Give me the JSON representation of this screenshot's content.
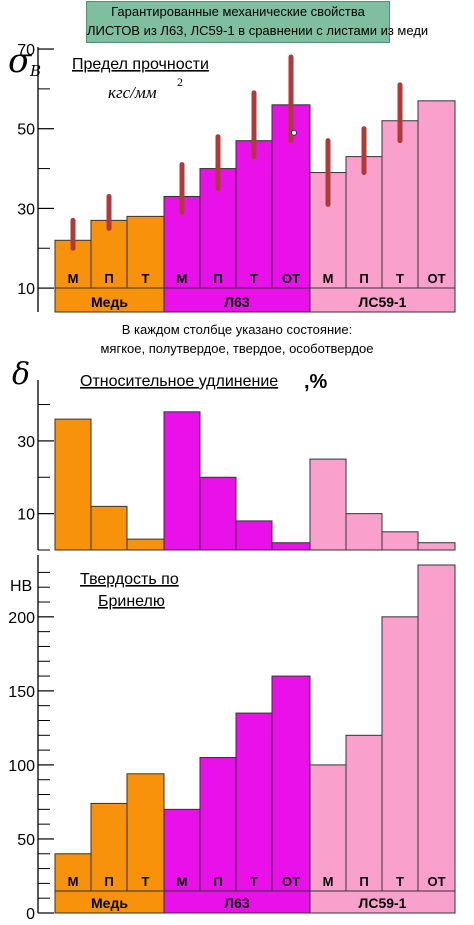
{
  "title": {
    "line1": "Гарантированные механические свойства",
    "line2": "ЛИСТОВ из Л63, ЛС59-1 в сравнении с листами из меди"
  },
  "note": {
    "line1": "В каждом столбце указано состояние:",
    "line2": "мягкое, полутвердое, твердое, особотвердое"
  },
  "colors": {
    "copper": "#f7920a",
    "l63": "#ea10ea",
    "ls59": "#f9a0cd",
    "error_bar": "#b03a3a",
    "axis": "#000000"
  },
  "chart_data": [
    {
      "type": "bar",
      "symbol": "σ",
      "symbol_sub": "B",
      "title": "Предел прочности",
      "unit": "кгс/мм",
      "unit_sup": "2",
      "categories": [
        "М",
        "П",
        "Т",
        "М",
        "П",
        "Т",
        "ОТ",
        "М",
        "П",
        "Т",
        "ОТ"
      ],
      "groups": [
        {
          "name": "Медь",
          "start": 0,
          "count": 3,
          "color": "copper"
        },
        {
          "name": "Л63",
          "start": 3,
          "count": 4,
          "color": "l63"
        },
        {
          "name": "ЛС59-1",
          "start": 7,
          "count": 4,
          "color": "ls59"
        }
      ],
      "values": [
        22,
        27,
        28,
        33,
        40,
        47,
        56,
        39,
        43,
        52,
        57
      ],
      "ranges": [
        [
          20,
          27
        ],
        [
          25,
          33
        ],
        null,
        [
          29,
          41
        ],
        [
          35,
          48
        ],
        [
          43,
          59
        ],
        [
          47,
          68
        ],
        [
          31,
          47
        ],
        [
          39,
          50
        ],
        [
          47,
          61
        ],
        null
      ],
      "point": {
        "index": 6,
        "value": 49
      },
      "ylim": [
        4,
        68
      ],
      "yticks": [
        10,
        30,
        50,
        70
      ]
    },
    {
      "type": "bar",
      "symbol": "δ",
      "title": "Относительное удлинение",
      "unit": ",%",
      "categories": [
        "М",
        "П",
        "Т",
        "М",
        "П",
        "Т",
        "ОТ",
        "М",
        "П",
        "Т",
        "ОТ"
      ],
      "values": [
        36,
        12,
        3,
        38,
        20,
        8,
        2,
        25,
        10,
        5,
        2
      ],
      "ylim": [
        0,
        44
      ],
      "yticks": [
        10,
        30
      ]
    },
    {
      "type": "bar",
      "title_line1": "Твердость по",
      "title_line2": "Бринелю",
      "ylabel": "НВ",
      "categories": [
        "М",
        "П",
        "Т",
        "М",
        "П",
        "Т",
        "ОТ",
        "М",
        "П",
        "Т",
        "ОТ"
      ],
      "groups": [
        {
          "name": "Медь",
          "start": 0,
          "count": 3,
          "color": "copper"
        },
        {
          "name": "Л63",
          "start": 3,
          "count": 4,
          "color": "l63"
        },
        {
          "name": "ЛС59-1",
          "start": 7,
          "count": 4,
          "color": "ls59"
        }
      ],
      "values": [
        40,
        74,
        94,
        70,
        105,
        135,
        160,
        100,
        120,
        200,
        235
      ],
      "ylim": [
        0,
        235
      ],
      "yticks": [
        0,
        50,
        100,
        150,
        200
      ]
    }
  ]
}
